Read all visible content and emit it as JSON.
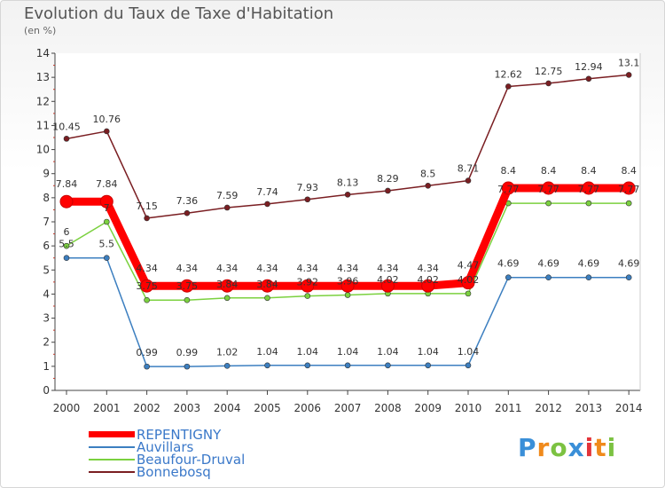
{
  "chart_data": {
    "type": "line",
    "title": "Evolution du Taux de Taxe d'Habitation",
    "unit_label": "(en %)",
    "ylim": [
      0,
      14
    ],
    "yticks": [
      "0",
      "1",
      "2",
      "3",
      "4",
      "5",
      "6",
      "7",
      "8",
      "9",
      "10",
      "11",
      "12",
      "13",
      "14"
    ],
    "categories": [
      "2000",
      "2001",
      "2002",
      "2003",
      "2004",
      "2005",
      "2006",
      "2007",
      "2008",
      "2009",
      "2010",
      "2011",
      "2012",
      "2013",
      "2014"
    ],
    "series": [
      {
        "name": "REPENTIGNY",
        "color": "#ff0000",
        "values": [
          7.84,
          7.84,
          4.34,
          4.34,
          4.34,
          4.34,
          4.34,
          4.34,
          4.34,
          4.34,
          4.47,
          8.4,
          8.4,
          8.4,
          8.4
        ],
        "labels": [
          "7.84",
          "7.84",
          "4.34",
          "4.34",
          "4.34",
          "4.34",
          "4.34",
          "4.34",
          "4.34",
          "4.34",
          "4.47",
          "8.4",
          "8.4",
          "8.4",
          "8.4"
        ]
      },
      {
        "name": "Auvillars",
        "color": "#3c7fc0",
        "values": [
          5.5,
          5.5,
          0.99,
          0.99,
          1.02,
          1.04,
          1.04,
          1.04,
          1.04,
          1.04,
          1.04,
          4.69,
          4.69,
          4.69,
          4.69
        ],
        "labels": [
          "5.5",
          "5.5",
          "0.99",
          "0.99",
          "1.02",
          "1.04",
          "1.04",
          "1.04",
          "1.04",
          "1.04",
          "1.04",
          "4.69",
          "4.69",
          "4.69",
          "4.69"
        ]
      },
      {
        "name": "Beaufour-Druval",
        "color": "#7bd13f",
        "values": [
          6,
          7,
          3.75,
          3.75,
          3.84,
          3.84,
          3.92,
          3.96,
          4.02,
          4.02,
          4.02,
          7.77,
          7.77,
          7.77,
          7.77
        ],
        "labels": [
          "6",
          "7",
          "3.75",
          "3.75",
          "3.84",
          "3.84",
          "3.92",
          "3.96",
          "4.02",
          "4.02",
          "4.02",
          "7.77",
          "7.77",
          "7.77",
          "7.77"
        ]
      },
      {
        "name": "Bonnebosq",
        "color": "#7a1e22",
        "values": [
          10.45,
          10.76,
          7.15,
          7.36,
          7.59,
          7.74,
          7.93,
          8.13,
          8.29,
          8.5,
          8.71,
          12.62,
          12.75,
          12.94,
          13.1
        ],
        "labels": [
          "10.45",
          "10.76",
          "7.15",
          "7.36",
          "7.59",
          "7.74",
          "7.93",
          "8.13",
          "8.29",
          "8.5",
          "8.71",
          "12.62",
          "12.75",
          "12.94",
          "13.1"
        ]
      }
    ]
  },
  "brand": {
    "letters": [
      "P",
      "r",
      "o",
      "x",
      "i",
      "t",
      "i"
    ],
    "colors": [
      "#3a8fd8",
      "#f08a1c",
      "#7cc242",
      "#3a8fd8",
      "#e3343a",
      "#f08a1c",
      "#7cc242"
    ]
  }
}
